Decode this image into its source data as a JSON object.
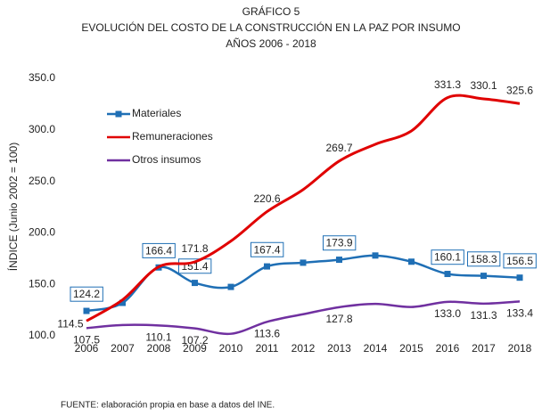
{
  "chart_data": {
    "type": "line",
    "title": "GRÁFICO 5",
    "subtitle": "EVOLUCIÓN DEL COSTO DE LA CONSTRUCCIÓN EN LA PAZ POR INSUMO",
    "subtitle2": "AÑOS 2006 - 2018",
    "y_label": "ÍNDICE (Junio 2002 = 100)",
    "source": "FUENTE: elaboración propia en base a datos del INE.",
    "categories": [
      "2006",
      "2007",
      "2008",
      "2009",
      "2010",
      "2011",
      "2012",
      "2013",
      "2014",
      "2015",
      "2016",
      "2017",
      "2018"
    ],
    "ylim": [
      100,
      350
    ],
    "yticks": [
      {
        "value": 100,
        "label": "100.0"
      },
      {
        "value": 150,
        "label": "150.0"
      },
      {
        "value": 200,
        "label": "200.0"
      },
      {
        "value": 250,
        "label": "250.0"
      },
      {
        "value": 300,
        "label": "300.0"
      },
      {
        "value": 350,
        "label": "350.0"
      }
    ],
    "legend": "upper left",
    "series": [
      {
        "name": "Materiales",
        "color": "#1f6fb5",
        "marker": "square",
        "values": [
          124.2,
          132,
          166.4,
          151.4,
          147.5,
          167.4,
          171,
          173.9,
          178,
          172,
          160.1,
          158.3,
          156.5
        ],
        "value_labels": [
          "124.2",
          null,
          "166.4",
          "151.4",
          null,
          "167.4",
          null,
          "173.9",
          null,
          null,
          "160.1",
          "158.3",
          "156.5"
        ]
      },
      {
        "name": "Remuneraciones",
        "color": "#e00000",
        "values": [
          114.5,
          135,
          167,
          171.8,
          192,
          220.6,
          242,
          269.7,
          286,
          299,
          331.3,
          330.1,
          325.6
        ],
        "value_labels": [
          "114.5",
          null,
          null,
          "171.8",
          null,
          "220.6",
          null,
          "269.7",
          null,
          null,
          "331.3",
          "330.1",
          "325.6"
        ]
      },
      {
        "name": "Otros insumos",
        "color": "#7030a0",
        "values": [
          107.5,
          110.5,
          110.1,
          107.2,
          102,
          113.6,
          121,
          127.8,
          131,
          128,
          133.0,
          131.3,
          133.4
        ],
        "value_labels": [
          "107.5",
          null,
          "110.1",
          "107.2",
          null,
          "113.6",
          null,
          "127.8",
          null,
          null,
          "133.0",
          "131.3",
          "133.4"
        ]
      }
    ]
  }
}
